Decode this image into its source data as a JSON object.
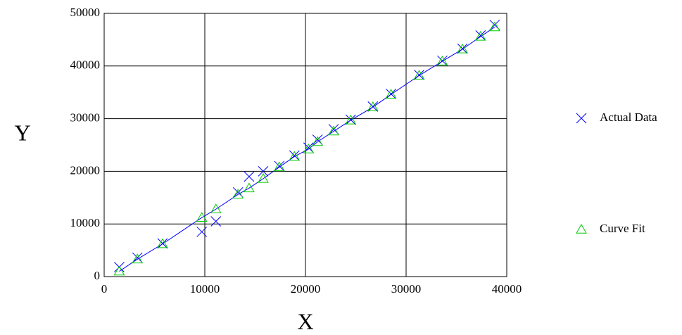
{
  "chart_data": {
    "type": "scatter",
    "xlabel": "X",
    "ylabel": "Y",
    "xlim": [
      0,
      40000
    ],
    "xticks": [
      0,
      10000,
      20000,
      30000,
      40000
    ],
    "ylim": [
      0,
      50000
    ],
    "yticks": [
      0,
      10000,
      20000,
      30000,
      40000,
      50000
    ],
    "grid": true,
    "legend": "right",
    "series": [
      {
        "name": "Actual Data",
        "color": "#0000ff",
        "marker": "x",
        "x": [
          1500,
          3300,
          5800,
          9700,
          11100,
          13300,
          14400,
          15800,
          17400,
          18900,
          20300,
          21200,
          22800,
          24500,
          26700,
          28500,
          31300,
          33600,
          35600,
          37400,
          38800
        ],
        "values": [
          1800,
          3600,
          6300,
          8500,
          10500,
          16000,
          19000,
          20000,
          21000,
          23000,
          24500,
          26000,
          28000,
          29800,
          32300,
          34700,
          38300,
          41000,
          43300,
          45800,
          47800
        ]
      },
      {
        "name": "Curve Fit",
        "color": "#00cc00",
        "marker": "triangle",
        "line_color": "#0000ff",
        "x": [
          1500,
          3300,
          5800,
          9700,
          11100,
          13300,
          14400,
          15800,
          17400,
          18900,
          20300,
          21200,
          22800,
          24500,
          26700,
          28500,
          31300,
          33600,
          35600,
          37400,
          38800
        ],
        "values": [
          1000,
          3300,
          6200,
          11200,
          12800,
          15600,
          16800,
          18600,
          20800,
          22800,
          24200,
          25600,
          27600,
          29700,
          32200,
          34600,
          38200,
          40900,
          43200,
          45600,
          47400
        ]
      }
    ]
  }
}
